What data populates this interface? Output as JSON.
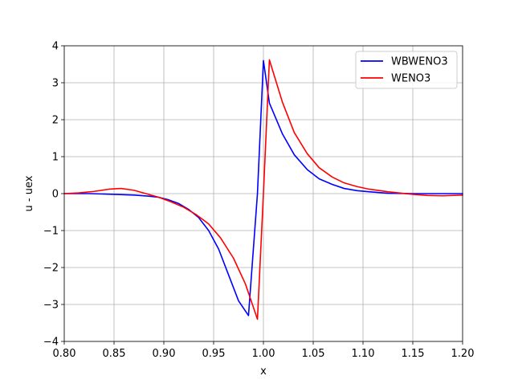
{
  "chart_data": {
    "type": "line",
    "title": "",
    "xlabel": "x",
    "ylabel": "u - uex",
    "xlim": [
      0.8,
      1.2
    ],
    "ylim": [
      -4,
      4
    ],
    "grid": true,
    "legend_position": "top-right",
    "x_ticks": [
      "0.80",
      "0.85",
      "0.90",
      "0.95",
      "1.00",
      "1.05",
      "1.10",
      "1.15",
      "1.20"
    ],
    "y_ticks": [
      "4",
      "3",
      "2",
      "1",
      "0",
      "−1",
      "−2",
      "−3",
      "−4"
    ],
    "series": [
      {
        "name": "WBWENO3",
        "color": "#0000ff",
        "x": [
          0.8,
          0.825,
          0.85,
          0.87,
          0.885,
          0.895,
          0.905,
          0.915,
          0.925,
          0.935,
          0.945,
          0.955,
          0.965,
          0.975,
          0.985,
          0.994,
          1.0,
          1.006,
          1.019,
          1.031,
          1.044,
          1.056,
          1.069,
          1.081,
          1.094,
          1.106,
          1.125,
          1.15,
          1.175,
          1.2
        ],
        "y": [
          0.0,
          0.0,
          -0.02,
          -0.04,
          -0.07,
          -0.1,
          -0.17,
          -0.27,
          -0.43,
          -0.65,
          -1.0,
          -1.5,
          -2.2,
          -2.9,
          -3.3,
          0.0,
          3.6,
          2.45,
          1.62,
          1.05,
          0.65,
          0.4,
          0.25,
          0.14,
          0.08,
          0.05,
          0.01,
          0.0,
          0.0,
          0.0
        ]
      },
      {
        "name": "WENO3",
        "color": "#ff0000",
        "x": [
          0.8,
          0.815,
          0.83,
          0.845,
          0.857,
          0.87,
          0.882,
          0.895,
          0.907,
          0.92,
          0.932,
          0.945,
          0.957,
          0.97,
          0.982,
          0.994,
          1.0,
          1.006,
          1.019,
          1.031,
          1.044,
          1.056,
          1.069,
          1.081,
          1.094,
          1.106,
          1.125,
          1.15,
          1.165,
          1.18,
          1.2
        ],
        "y": [
          0.0,
          0.02,
          0.06,
          0.12,
          0.14,
          0.09,
          0.0,
          -0.1,
          -0.22,
          -0.37,
          -0.56,
          -0.82,
          -1.2,
          -1.75,
          -2.45,
          -3.4,
          0.0,
          3.62,
          2.48,
          1.65,
          1.08,
          0.7,
          0.45,
          0.29,
          0.19,
          0.12,
          0.05,
          -0.02,
          -0.05,
          -0.06,
          -0.04
        ]
      }
    ]
  }
}
